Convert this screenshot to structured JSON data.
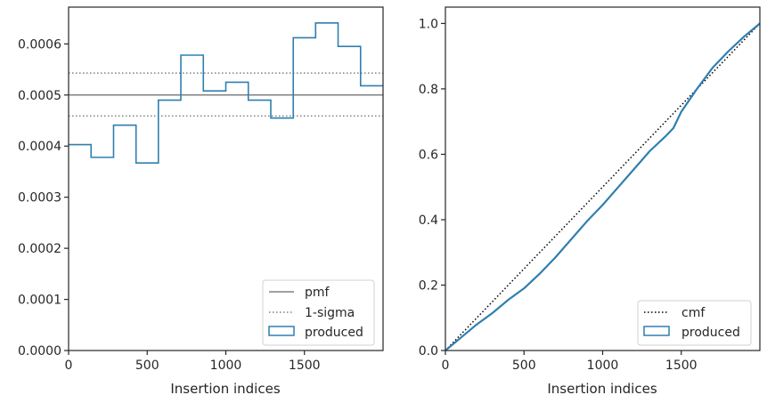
{
  "chart_data": [
    {
      "type": "histogram",
      "xlabel": "Insertion indices",
      "ylabel": "",
      "xlim": [
        0,
        2000
      ],
      "ylim": [
        0,
        0.000672
      ],
      "xticks": [
        0,
        500,
        1000,
        1500
      ],
      "xtick_labels": [
        "0",
        "500",
        "1000",
        "1500"
      ],
      "yticks": [
        0,
        0.0001,
        0.0002,
        0.0003,
        0.0004,
        0.0005,
        0.0006
      ],
      "ytick_labels": [
        "0.0000",
        "0.0001",
        "0.0002",
        "0.0003",
        "0.0004",
        "0.0005",
        "0.0006"
      ],
      "bin_edges": [
        0,
        143,
        286,
        429,
        571,
        714,
        857,
        1000,
        1143,
        1286,
        1429,
        1571,
        1714,
        1857,
        2000
      ],
      "values": [
        0.000403,
        0.000378,
        0.000441,
        0.000367,
        0.00049,
        0.000578,
        0.000508,
        0.000525,
        0.00049,
        0.000455,
        0.000612,
        0.000641,
        0.000595,
        0.000518
      ],
      "pmf": 0.0005,
      "sigma_band": [
        0.000459,
        0.000543
      ],
      "legend_position": "lower right",
      "legend": [
        {
          "label": "pmf",
          "style": "solid-gray"
        },
        {
          "label": "1-sigma",
          "style": "dotted-gray"
        },
        {
          "label": "produced",
          "style": "box-blue"
        }
      ],
      "colors": {
        "produced": "#2f7fb0",
        "reference": "#808080"
      }
    },
    {
      "type": "line",
      "xlabel": "Insertion indices",
      "ylabel": "",
      "xlim": [
        0,
        2000
      ],
      "ylim": [
        0,
        1.05
      ],
      "xticks": [
        0,
        500,
        1000,
        1500
      ],
      "xtick_labels": [
        "0",
        "500",
        "1000",
        "1500"
      ],
      "yticks": [
        0,
        0.2,
        0.4,
        0.6,
        0.8,
        1.0
      ],
      "ytick_labels": [
        "0.0",
        "0.2",
        "0.4",
        "0.6",
        "0.8",
        "1.0"
      ],
      "series": [
        {
          "name": "cmf",
          "style": "dotted-black",
          "x": [
            0,
            2000
          ],
          "y": [
            0,
            1.0
          ]
        },
        {
          "name": "produced",
          "style": "solid-blue",
          "x": [
            0,
            100,
            200,
            300,
            400,
            500,
            600,
            700,
            800,
            900,
            1000,
            1100,
            1200,
            1300,
            1400,
            1450,
            1500,
            1600,
            1700,
            1800,
            1900,
            2000
          ],
          "y": [
            0,
            0.04,
            0.08,
            0.115,
            0.155,
            0.19,
            0.235,
            0.285,
            0.34,
            0.395,
            0.445,
            0.5,
            0.555,
            0.61,
            0.655,
            0.68,
            0.73,
            0.8,
            0.865,
            0.915,
            0.96,
            1.0
          ]
        }
      ],
      "legend_position": "lower right",
      "legend": [
        {
          "label": "cmf",
          "style": "dotted-black"
        },
        {
          "label": "produced",
          "style": "box-blue"
        }
      ],
      "colors": {
        "produced": "#2f7fb0",
        "cmf": "#000000"
      }
    }
  ]
}
